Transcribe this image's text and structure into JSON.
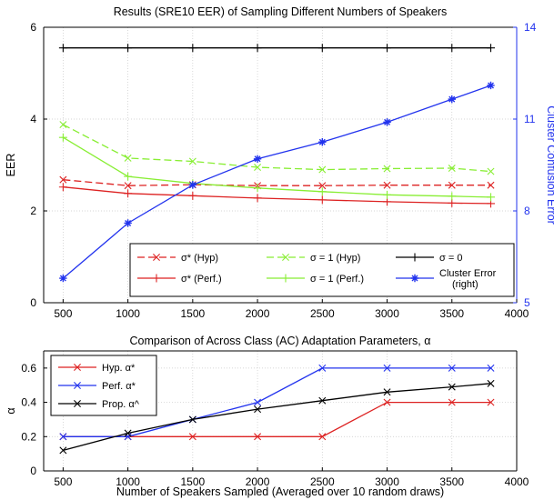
{
  "chart_data": [
    {
      "type": "line",
      "title": "Results (SRE10 EER) of Sampling Different Numbers of Speakers",
      "ylabel": "EER",
      "ylabel_right": "Cluster Confusion Error",
      "xlim": [
        350,
        4000
      ],
      "ylim": [
        0,
        6
      ],
      "ylim_right": [
        5,
        14
      ],
      "xticks": [
        500,
        1000,
        1500,
        2000,
        2500,
        3000,
        3500,
        4000
      ],
      "yticks": [
        0,
        2,
        4,
        6
      ],
      "yticks_right": [
        5,
        8,
        11,
        14
      ],
      "grid": true,
      "legend_position": "bottom-center",
      "legend_columns": 3,
      "x": [
        500,
        1000,
        1500,
        2000,
        2500,
        3000,
        3500,
        3800
      ],
      "series": [
        {
          "name": "σ* (Hyp)",
          "color": "#dd2222",
          "dash": "8,4",
          "marker": "x",
          "axis": "left",
          "values": [
            2.68,
            2.55,
            2.57,
            2.55,
            2.55,
            2.56,
            2.56,
            2.56
          ]
        },
        {
          "name": "σ* (Perf.)",
          "color": "#dd2222",
          "dash": "",
          "marker": "+",
          "axis": "left",
          "values": [
            2.52,
            2.38,
            2.33,
            2.28,
            2.24,
            2.2,
            2.17,
            2.16
          ]
        },
        {
          "name": "σ = 1 (Hyp)",
          "color": "#88ee33",
          "dash": "8,4",
          "marker": "x",
          "axis": "left",
          "values": [
            3.88,
            3.15,
            3.08,
            2.95,
            2.9,
            2.92,
            2.93,
            2.86
          ]
        },
        {
          "name": "σ = 1 (Perf.)",
          "color": "#88ee33",
          "dash": "",
          "marker": "+",
          "axis": "left",
          "values": [
            3.6,
            2.75,
            2.6,
            2.5,
            2.42,
            2.35,
            2.32,
            2.3
          ]
        },
        {
          "name": "σ = 0",
          "color": "#000000",
          "dash": "",
          "marker": "+",
          "axis": "left",
          "values": [
            5.55,
            5.55,
            5.55,
            5.55,
            5.55,
            5.55,
            5.55,
            5.55
          ]
        },
        {
          "name": "Cluster Error\n(right)",
          "color": "#2233ee",
          "dash": "",
          "marker": "*",
          "axis": "right",
          "values": [
            5.8,
            7.6,
            8.85,
            9.7,
            10.25,
            10.9,
            11.65,
            12.1
          ]
        }
      ]
    },
    {
      "type": "line",
      "title": "Comparison of Across Class (AC) Adaptation Parameters, α",
      "xlabel": "Number of Speakers Sampled (Averaged over 10 random draws)",
      "ylabel": "α",
      "xlim": [
        350,
        4000
      ],
      "ylim": [
        0,
        0.7
      ],
      "xticks": [
        500,
        1000,
        1500,
        2000,
        2500,
        3000,
        3500,
        4000
      ],
      "yticks": [
        0,
        0.2,
        0.4,
        0.6
      ],
      "grid": true,
      "legend_position": "top-left",
      "legend_columns": 1,
      "x": [
        500,
        1000,
        1500,
        2000,
        2500,
        3000,
        3500,
        3800
      ],
      "series": [
        {
          "name": "Hyp. α*",
          "color": "#dd2222",
          "dash": "",
          "marker": "x",
          "values": [
            0.2,
            0.2,
            0.2,
            0.2,
            0.2,
            0.4,
            0.4,
            0.4
          ]
        },
        {
          "name": "Perf. α*",
          "color": "#2233ee",
          "dash": "",
          "marker": "x",
          "values": [
            0.2,
            0.2,
            0.3,
            0.4,
            0.6,
            0.6,
            0.6,
            0.6
          ]
        },
        {
          "name": "Prop. α^",
          "color": "#000000",
          "dash": "",
          "marker": "x",
          "values": [
            0.12,
            0.22,
            0.3,
            0.36,
            0.41,
            0.46,
            0.49,
            0.51
          ]
        }
      ]
    }
  ]
}
